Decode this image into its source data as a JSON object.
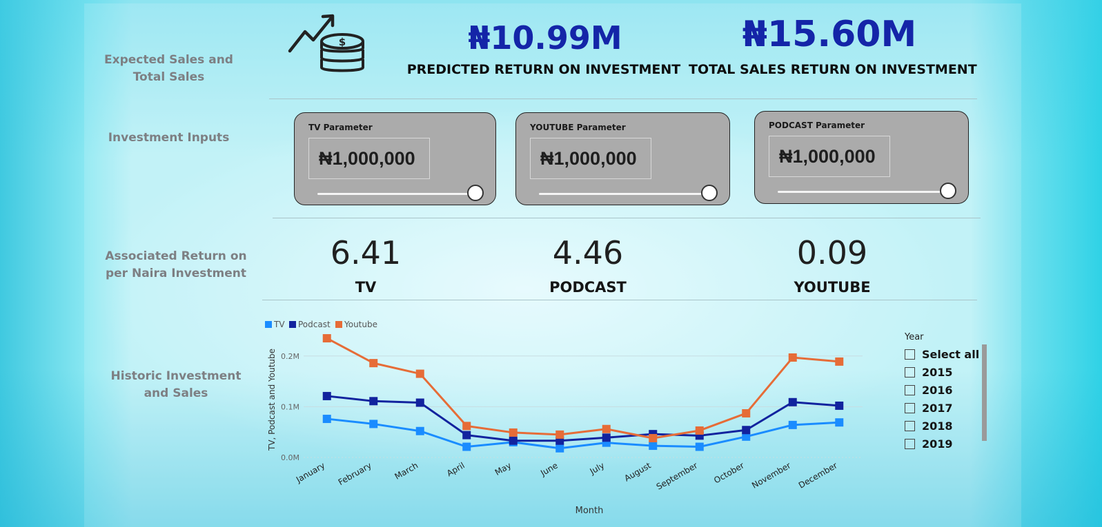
{
  "labels": {
    "expected_sales": "Expected Sales and Total Sales",
    "investment_inputs": "Investment Inputs",
    "associated_return": "Associated Return on per Naira Investment",
    "historic": "Historic Investment and Sales"
  },
  "kpis": {
    "predicted_value": "₦10.99M",
    "predicted_caption": "PREDICTED RETURN ON INVESTMENT",
    "total_value": "₦15.60M",
    "total_caption": "TOTAL SALES RETURN ON INVESTMENT",
    "icon": "money-growth-icon"
  },
  "parameters": [
    {
      "title": "TV Parameter",
      "value": "₦1,000,000",
      "slider_level": 1.0
    },
    {
      "title": "YOUTUBE Parameter",
      "value": "₦1,000,000",
      "slider_level": 1.0
    },
    {
      "title": "PODCAST Parameter",
      "value": "₦1,000,000",
      "slider_level": 1.0
    }
  ],
  "returns": [
    {
      "value": "6.41",
      "label": "TV"
    },
    {
      "value": "4.46",
      "label": "PODCAST"
    },
    {
      "value": "0.09",
      "label": "YOUTUBE"
    }
  ],
  "chart_data": {
    "type": "line",
    "title": "",
    "xlabel": "Month",
    "ylabel": "TV, Podcast and Youtube",
    "categories": [
      "January",
      "February",
      "March",
      "April",
      "May",
      "June",
      "July",
      "August",
      "September",
      "October",
      "November",
      "December"
    ],
    "series": [
      {
        "name": "TV",
        "color": "#1a8cff",
        "values": [
          0.076,
          0.066,
          0.052,
          0.021,
          0.03,
          0.018,
          0.029,
          0.023,
          0.021,
          0.041,
          0.064,
          0.069
        ]
      },
      {
        "name": "Podcast",
        "color": "#12239e",
        "values": [
          0.121,
          0.111,
          0.108,
          0.044,
          0.033,
          0.033,
          0.039,
          0.046,
          0.043,
          0.054,
          0.109,
          0.102
        ]
      },
      {
        "name": "Youtube",
        "color": "#e66c37",
        "values": [
          0.235,
          0.186,
          0.165,
          0.062,
          0.049,
          0.045,
          0.056,
          0.038,
          0.053,
          0.087,
          0.197,
          0.189
        ]
      }
    ],
    "yticks": [
      {
        "value": 0,
        "label": "0.0M"
      },
      {
        "value": 0.1,
        "label": "0.1M"
      },
      {
        "value": 0.2,
        "label": "0.2M"
      }
    ],
    "ylim": [
      0,
      0.25
    ],
    "legend": "top-left",
    "grid": true
  },
  "slicer": {
    "title": "Year",
    "items": [
      "Select all",
      "2015",
      "2016",
      "2017",
      "2018",
      "2019"
    ]
  }
}
